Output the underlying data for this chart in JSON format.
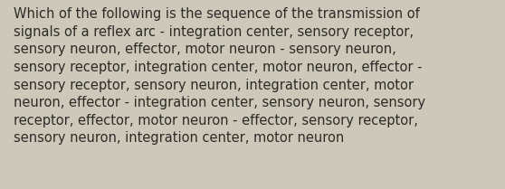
{
  "lines": [
    "Which of the following is the sequence of the transmission of",
    "signals of a reflex arc - integration center, sensory receptor,",
    "sensory neuron, effector, motor neuron - sensory neuron,",
    "sensory receptor, integration center, motor neuron, effector -",
    "sensory receptor, sensory neuron, integration center, motor",
    "neuron, effector - integration center, sensory neuron, sensory",
    "receptor, effector, motor neuron - effector, sensory receptor,",
    "sensory neuron, integration center, motor neuron"
  ],
  "background_color": "#cdc8ba",
  "text_color": "#2d2b26",
  "font_size": 10.5,
  "fig_width": 5.58,
  "fig_height": 2.09,
  "dpi": 100
}
